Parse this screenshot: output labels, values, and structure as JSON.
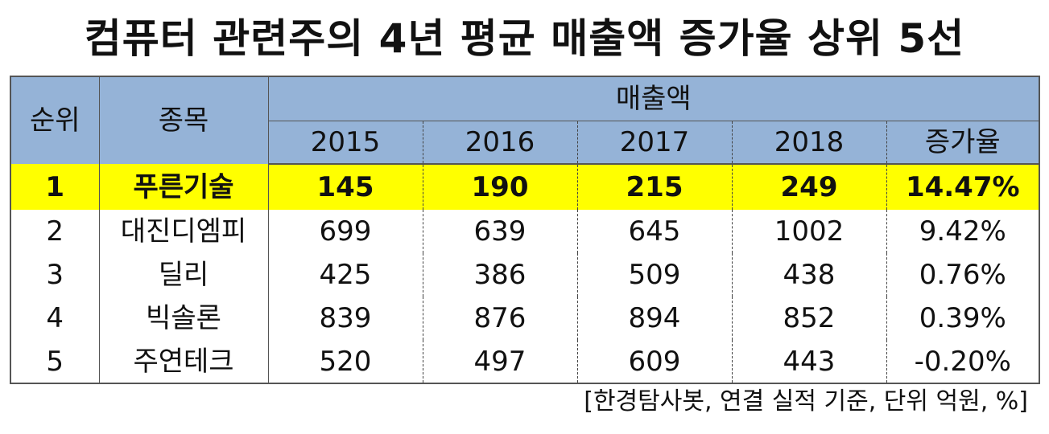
{
  "title": "컴퓨터 관련주의 4년 평균 매출액 증가율 상위 5선",
  "note": "[한경탐사봇, 연결 실적 기준, 단위 억원, %]",
  "chart_data": {
    "type": "table",
    "title": "컴퓨터 관련주의 4년 평균 매출액 증가율 상위 5선",
    "header": {
      "rank": "순위",
      "name": "종목",
      "group": "매출액",
      "years": [
        "2015",
        "2016",
        "2017",
        "2018"
      ],
      "growth": "증가율"
    },
    "rows": [
      {
        "rank": "1",
        "name": "푸른기술",
        "values": [
          "145",
          "190",
          "215",
          "249"
        ],
        "growth": "14.47%",
        "highlight": true
      },
      {
        "rank": "2",
        "name": "대진디엠피",
        "values": [
          "699",
          "639",
          "645",
          "1002"
        ],
        "growth": "9.42%",
        "highlight": false
      },
      {
        "rank": "3",
        "name": "딜리",
        "values": [
          "425",
          "386",
          "509",
          "438"
        ],
        "growth": "0.76%",
        "highlight": false
      },
      {
        "rank": "4",
        "name": "빅솔론",
        "values": [
          "839",
          "876",
          "894",
          "852"
        ],
        "growth": "0.39%",
        "highlight": false
      },
      {
        "rank": "5",
        "name": "주연테크",
        "values": [
          "520",
          "497",
          "609",
          "443"
        ],
        "growth": "-0.20%",
        "highlight": false
      }
    ],
    "colors": {
      "header_bg": "#95b3d7",
      "highlight_bg": "#ffff00"
    }
  }
}
